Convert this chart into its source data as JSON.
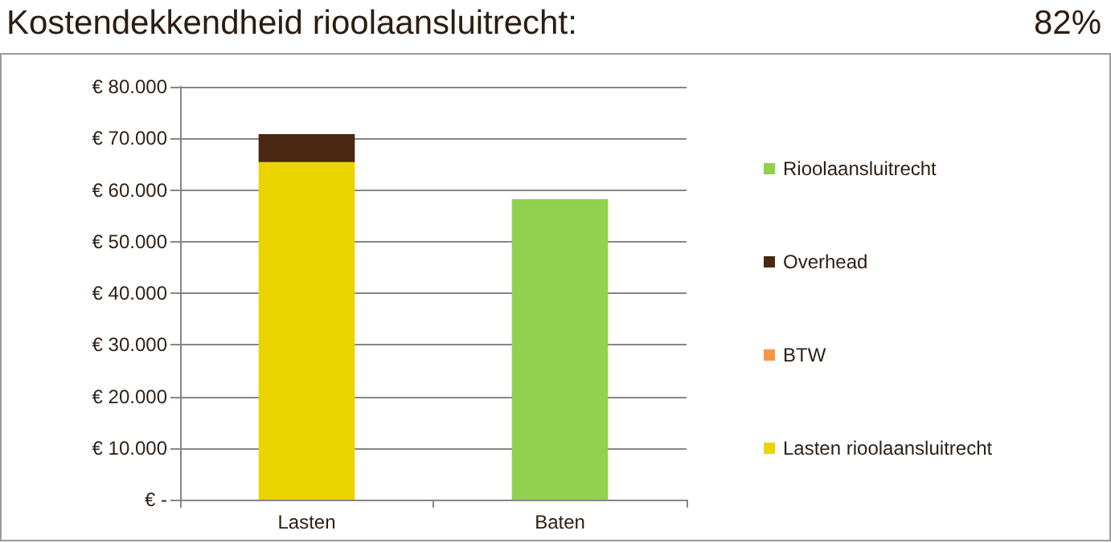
{
  "chart_data": {
    "type": "bar",
    "stacked": true,
    "title": "Kostendekkendheid rioolaansluitrecht:",
    "annotations": [
      "82%"
    ],
    "categories": [
      "Lasten",
      "Baten"
    ],
    "series": [
      {
        "name": "Lasten rioolaansluitrecht",
        "color": "#ebd300",
        "values": [
          65400,
          null
        ]
      },
      {
        "name": "BTW",
        "color": "#f79646",
        "values": [
          0,
          null
        ]
      },
      {
        "name": "Overhead",
        "color": "#4a2712",
        "values": [
          5400,
          null
        ]
      },
      {
        "name": "Rioolaansluitrecht",
        "color": "#92d050",
        "values": [
          null,
          58200
        ]
      }
    ],
    "ylim": [
      0,
      80000
    ],
    "yticks": [
      {
        "value": 0,
        "label": "€ -"
      },
      {
        "value": 10000,
        "label": "€ 10.000"
      },
      {
        "value": 20000,
        "label": "€ 20.000"
      },
      {
        "value": 30000,
        "label": "€ 30.000"
      },
      {
        "value": 40000,
        "label": "€ 40.000"
      },
      {
        "value": 50000,
        "label": "€ 50.000"
      },
      {
        "value": 60000,
        "label": "€ 60.000"
      },
      {
        "value": 70000,
        "label": "€ 70.000"
      },
      {
        "value": 80000,
        "label": "€ 80.000"
      }
    ],
    "grid": "y",
    "legend": "right"
  }
}
